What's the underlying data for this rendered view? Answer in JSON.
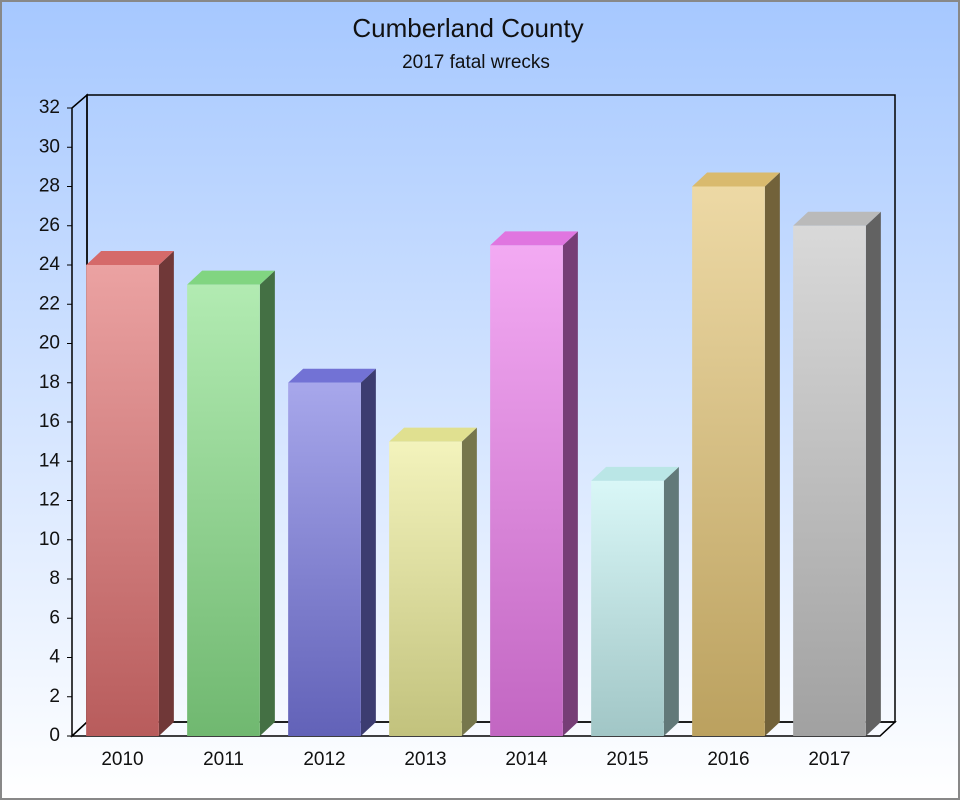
{
  "chart_data": {
    "type": "bar3d",
    "title": "Cumberland County",
    "subtitle": "2017 fatal wrecks",
    "categories": [
      "2010",
      "2011",
      "2012",
      "2013",
      "2014",
      "2015",
      "2016",
      "2017"
    ],
    "values": [
      24,
      23,
      18,
      15,
      25,
      13,
      28,
      26
    ],
    "colors": [
      "#e07070",
      "#88e088",
      "#7878e0",
      "#ecec98",
      "#ec7cec",
      "#c4f2f2",
      "#e4c474",
      "#c4c4c4"
    ],
    "ylim": [
      0,
      32
    ],
    "yticks": [
      0,
      2,
      4,
      6,
      8,
      10,
      12,
      14,
      16,
      18,
      20,
      22,
      24,
      26,
      28,
      30,
      32
    ]
  }
}
